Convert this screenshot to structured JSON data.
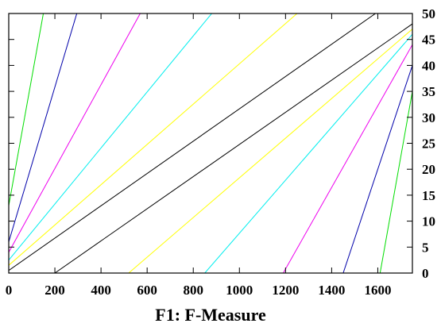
{
  "chart_data": {
    "type": "line",
    "xlabel": "F1: F-Measure",
    "ylabel": "",
    "xlim": [
      0,
      1750
    ],
    "ylim": [
      0,
      50
    ],
    "x_ticks": [
      0,
      200,
      400,
      600,
      800,
      1000,
      1200,
      1400,
      1600
    ],
    "y_ticks": [
      0,
      5,
      10,
      15,
      20,
      25,
      30,
      35,
      40,
      45,
      50
    ],
    "y_axis_side": "right",
    "grid": false,
    "legend": "none",
    "series": [
      {
        "color": "#00dd00",
        "points": [
          [
            0,
            13
          ],
          [
            150,
            50
          ]
        ]
      },
      {
        "color": "#0000aa",
        "points": [
          [
            0,
            6
          ],
          [
            295,
            50
          ]
        ]
      },
      {
        "color": "#ee00ee",
        "points": [
          [
            0,
            4
          ],
          [
            570,
            50
          ]
        ]
      },
      {
        "color": "#00eeee",
        "points": [
          [
            0,
            2.5
          ],
          [
            880,
            50
          ]
        ]
      },
      {
        "color": "#ffff00",
        "points": [
          [
            0,
            1.5
          ],
          [
            1250,
            50
          ]
        ]
      },
      {
        "color": "#000000",
        "points": [
          [
            0,
            0.5
          ],
          [
            1590,
            50
          ]
        ]
      },
      {
        "color": "#000000",
        "points": [
          [
            200,
            0
          ],
          [
            1750,
            48
          ]
        ]
      },
      {
        "color": "#ffff00",
        "points": [
          [
            520,
            0
          ],
          [
            1750,
            47
          ]
        ]
      },
      {
        "color": "#00eeee",
        "points": [
          [
            850,
            0
          ],
          [
            1750,
            46
          ]
        ]
      },
      {
        "color": "#ee00ee",
        "points": [
          [
            1190,
            0
          ],
          [
            1750,
            44
          ]
        ]
      },
      {
        "color": "#0000aa",
        "points": [
          [
            1450,
            0
          ],
          [
            1750,
            40
          ]
        ]
      },
      {
        "color": "#00dd00",
        "points": [
          [
            1610,
            0
          ],
          [
            1750,
            35
          ]
        ]
      }
    ]
  }
}
